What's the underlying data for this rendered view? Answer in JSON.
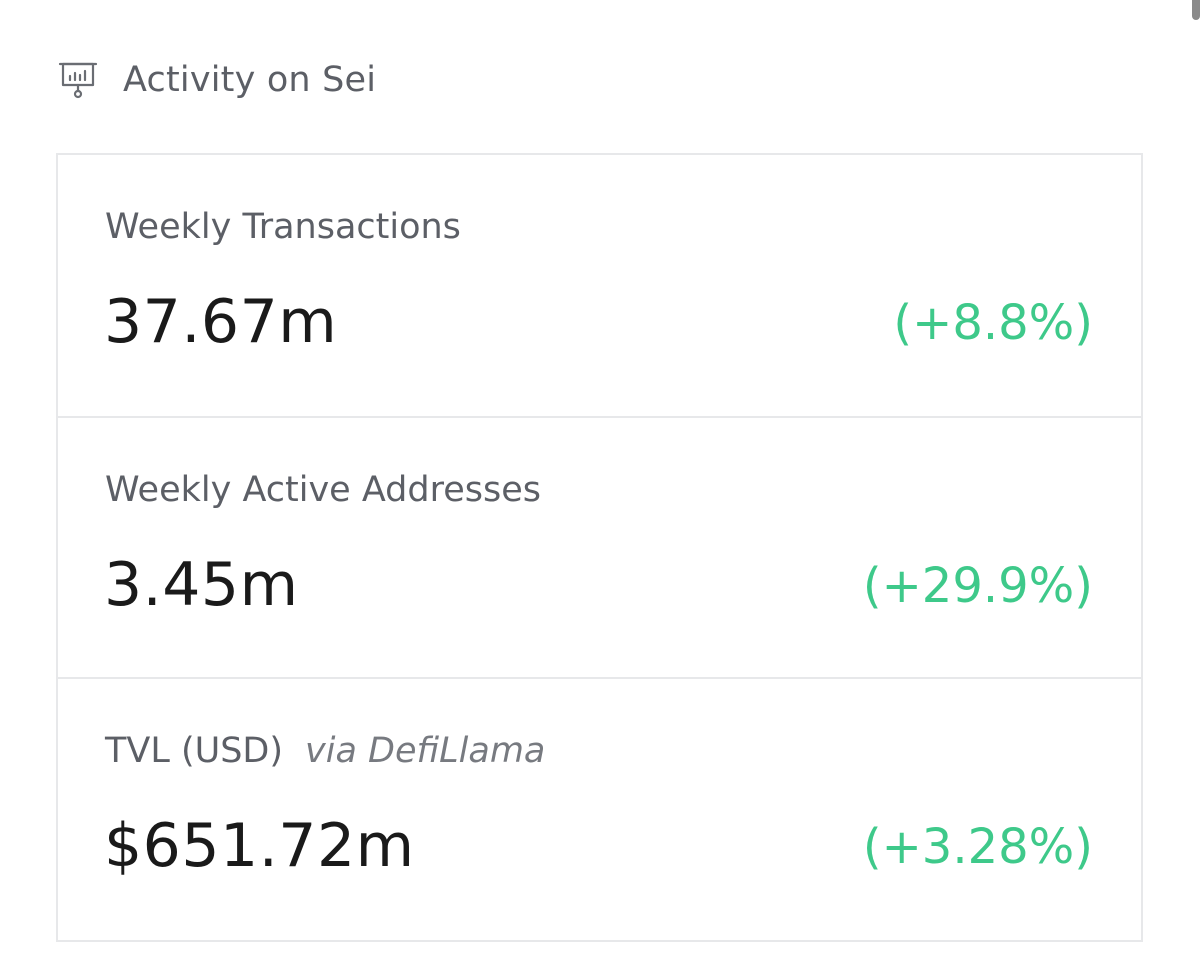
{
  "header": {
    "icon": "presentation-chart-icon",
    "title": "Activity on Sei"
  },
  "colors": {
    "positive_change": "#3ec98a",
    "label": "#5c5f66",
    "value": "#1a1a1a",
    "border": "#e7e8ea"
  },
  "stats": [
    {
      "label": "Weekly Transactions",
      "source": "",
      "value": "37.67m",
      "change": "(+8.8%)"
    },
    {
      "label": "Weekly Active Addresses",
      "source": "",
      "value": "3.45m",
      "change": "(+29.9%)"
    },
    {
      "label": "TVL (USD)",
      "source": "via DefiLlama",
      "value": "$651.72m",
      "change": "(+3.28%)"
    }
  ]
}
